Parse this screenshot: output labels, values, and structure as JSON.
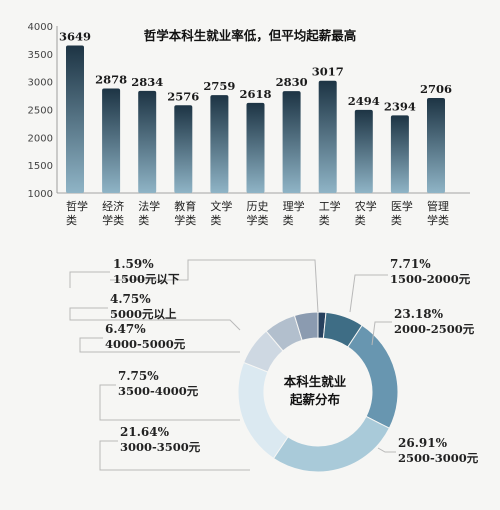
{
  "chart_data": [
    {
      "type": "bar",
      "title": "哲学本科生就业率低，但平均起薪最高",
      "categories": [
        [
          "哲学",
          "类"
        ],
        [
          "经济",
          "学类"
        ],
        [
          "法学",
          "类"
        ],
        [
          "教育",
          "学类"
        ],
        [
          "文学",
          "类"
        ],
        [
          "历史",
          "学类"
        ],
        [
          "理学",
          "类"
        ],
        [
          "工学",
          "类"
        ],
        [
          "农学",
          "类"
        ],
        [
          "医学",
          "类"
        ],
        [
          "管理",
          "学类"
        ]
      ],
      "values": [
        3649,
        2878,
        2834,
        2576,
        2759,
        2618,
        2830,
        3017,
        2494,
        2394,
        2706
      ],
      "value_labels": [
        "3649",
        "2878",
        "2834",
        "2576",
        "2759",
        "2618",
        "2830",
        "3017",
        "2494",
        "2394",
        "2706"
      ],
      "ylim": [
        1000,
        4000
      ],
      "yticks": [
        "1000",
        "1500",
        "2000",
        "2500",
        "3000",
        "3500",
        "4000"
      ],
      "colors": {
        "bar_top": "#1d3444",
        "bar_bottom": "#8fb4c6"
      }
    },
    {
      "type": "pie",
      "title": [
        "本科生就业",
        "起薪分布"
      ],
      "slices": [
        {
          "pct": 1.59,
          "pct_label": "1.59%",
          "range": "1500元以下",
          "color": "#27415e"
        },
        {
          "pct": 7.71,
          "pct_label": "7.71%",
          "range": "1500-2000元",
          "color": "#3e6d85"
        },
        {
          "pct": 23.18,
          "pct_label": "23.18%",
          "range": "2000-2500元",
          "color": "#6896b0"
        },
        {
          "pct": 26.91,
          "pct_label": "26.91%",
          "range": "2500-3000元",
          "color": "#a9cad9"
        },
        {
          "pct": 21.64,
          "pct_label": "21.64%",
          "range": "3000-3500元",
          "color": "#dbe9f1"
        },
        {
          "pct": 7.75,
          "pct_label": "7.75%",
          "range": "3500-4000元",
          "color": "#ced8e2"
        },
        {
          "pct": 6.47,
          "pct_label": "6.47%",
          "range": "4000-5000元",
          "color": "#b2bfcd"
        },
        {
          "pct": 4.75,
          "pct_label": "4.75%",
          "range": "5000元以上",
          "color": "#8b9bb0"
        }
      ]
    }
  ]
}
